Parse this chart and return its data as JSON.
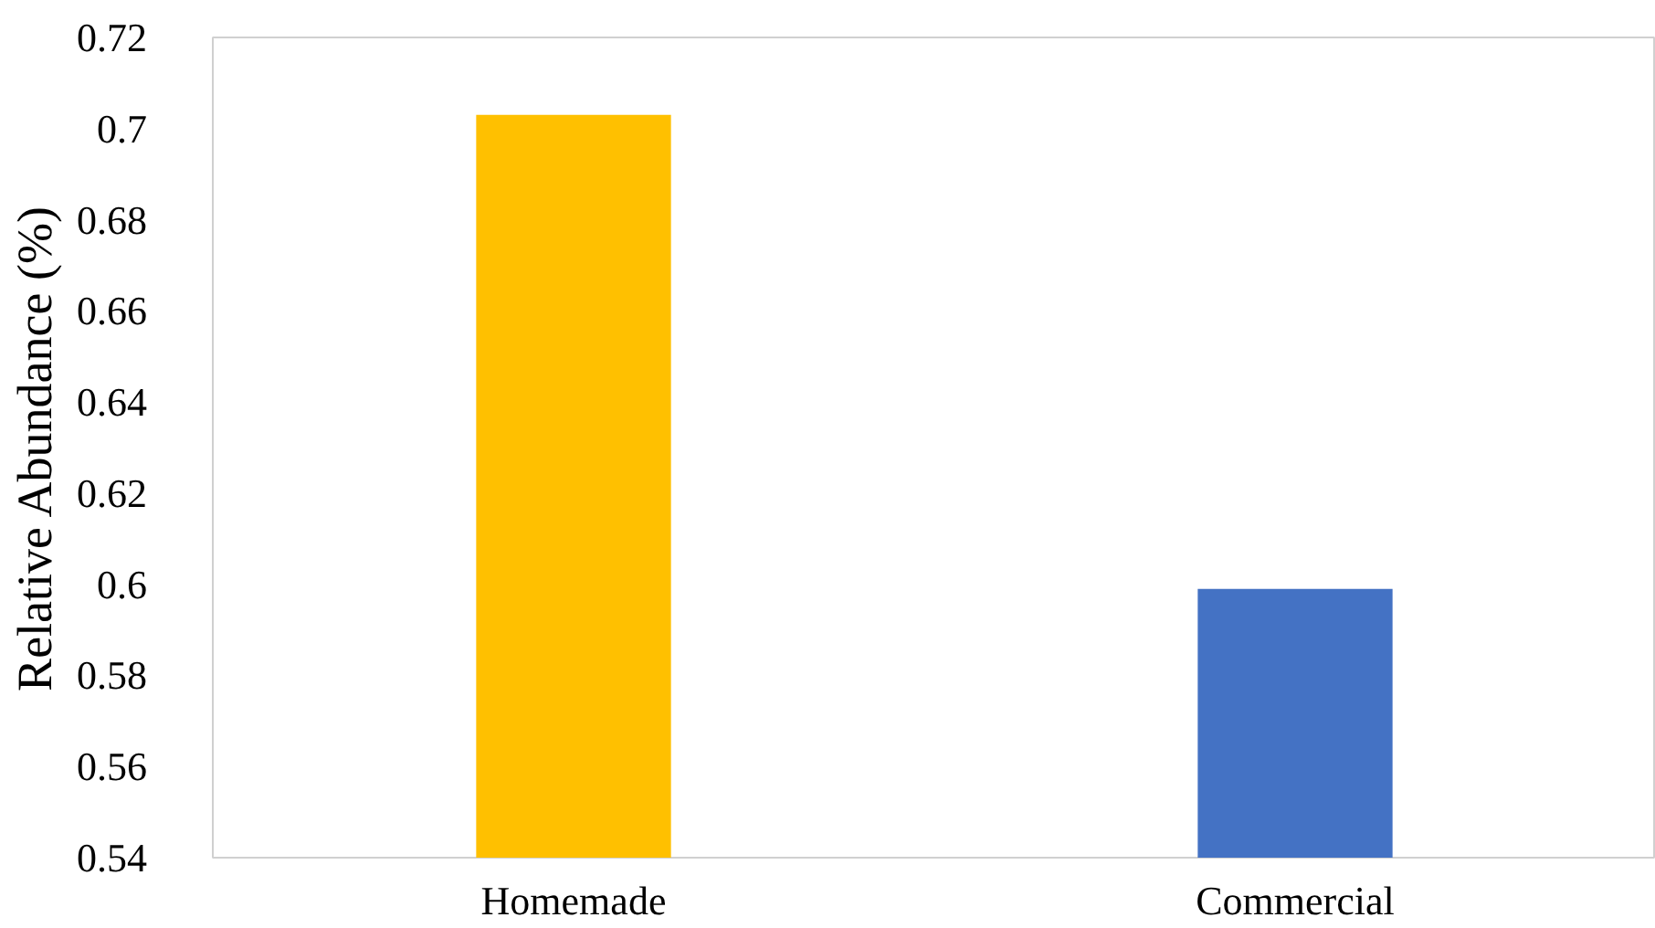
{
  "chart_data": {
    "type": "bar",
    "ylabel": "Relative Abundance (%)",
    "categories": [
      "Homemade",
      "Commercial"
    ],
    "values": [
      0.703,
      0.599
    ],
    "colors": [
      "#ffc000",
      "#4472c4"
    ],
    "ylim": [
      0.54,
      0.72
    ],
    "yticks": [
      0.54,
      0.56,
      0.58,
      0.6,
      0.62,
      0.64,
      0.66,
      0.68,
      0.7,
      0.72
    ],
    "grid": false
  }
}
